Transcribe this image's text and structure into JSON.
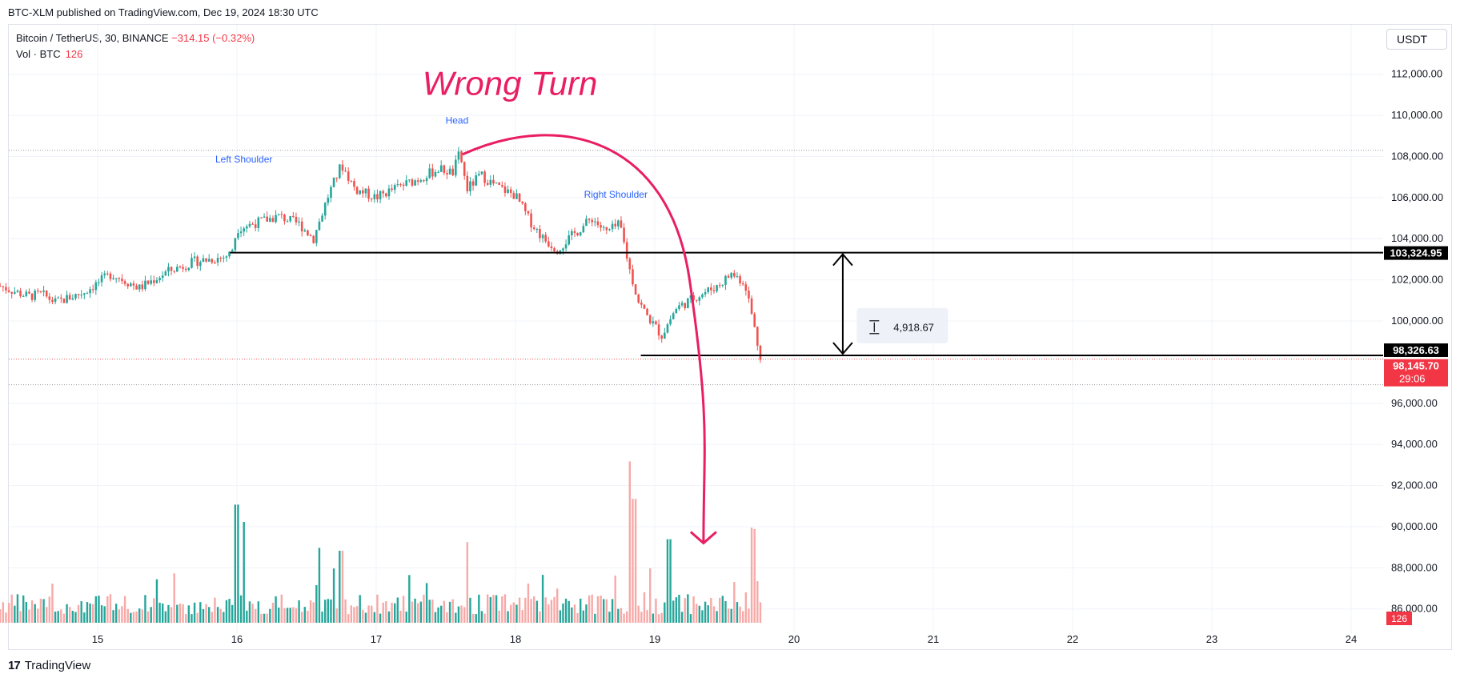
{
  "header": {
    "published": "BTC-XLM published on TradingView.com, Dec 19, 2024 18:30 UTC"
  },
  "legend": {
    "symbol": "Bitcoin / TetherUS, 30, BINANCE",
    "change": "−314.15 (−0.32%)",
    "volume_label": "Vol · BTC",
    "volume_value": "126"
  },
  "currency": "USDT",
  "footer": {
    "brand": "TradingView"
  },
  "colors": {
    "up": "#26a69a",
    "down": "#ef5350",
    "vol_up": "#26a69a",
    "vol_down": "#f7a9a7",
    "annotation": "#e91e63",
    "pattern_label": "#2962ff"
  },
  "annotations": {
    "title": "Wrong Turn",
    "left_shoulder": "Left Shoulder",
    "head": "Head",
    "right_shoulder": "Right Shoulder",
    "measure": "4,918.67"
  },
  "price_tags": {
    "neckline": "103,324.95",
    "target": "98,326.63",
    "last": "98,145.70",
    "countdown": "29:06",
    "volume": "126"
  },
  "chart_data": {
    "type": "candlestick",
    "y_ticks": [
      "112,000.00",
      "110,000.00",
      "108,000.00",
      "106,000.00",
      "104,000.00",
      "102,000.00",
      "100,000.00",
      "96,000.00",
      "94,000.00",
      "92,000.00",
      "90,000.00",
      "88,000.00",
      "86,000.00"
    ],
    "x_ticks": [
      "15",
      "16",
      "17",
      "18",
      "19",
      "20",
      "21",
      "22",
      "23",
      "24"
    ],
    "ylim": [
      84800,
      113200
    ],
    "x_range": [
      "Dec 14",
      "Dec 24"
    ],
    "levels": {
      "neckline": 103324.95,
      "target": 98326.63,
      "last": 98145.7,
      "high_line": 108300,
      "low_line": 96900
    },
    "price_path": [
      [
        14.3,
        101700
      ],
      [
        14.5,
        101200
      ],
      [
        14.6,
        101300
      ],
      [
        14.7,
        100900
      ],
      [
        14.9,
        101400
      ],
      [
        15.1,
        102300
      ],
      [
        15.3,
        101600
      ],
      [
        15.5,
        102400
      ],
      [
        15.7,
        102900
      ],
      [
        15.9,
        103100
      ],
      [
        15.96,
        103300
      ],
      [
        16.0,
        104500
      ],
      [
        16.15,
        104800
      ],
      [
        16.3,
        105100
      ],
      [
        16.45,
        104700
      ],
      [
        16.55,
        104000
      ],
      [
        16.65,
        106000
      ],
      [
        16.75,
        107600
      ],
      [
        16.85,
        106400
      ],
      [
        17.0,
        106000
      ],
      [
        17.15,
        106500
      ],
      [
        17.3,
        106900
      ],
      [
        17.45,
        107400
      ],
      [
        17.55,
        107200
      ],
      [
        17.6,
        108200
      ],
      [
        17.65,
        106400
      ],
      [
        17.75,
        107100
      ],
      [
        17.85,
        106600
      ],
      [
        18.0,
        106100
      ],
      [
        18.1,
        104900
      ],
      [
        18.2,
        104000
      ],
      [
        18.3,
        103500
      ],
      [
        18.45,
        104400
      ],
      [
        18.55,
        105000
      ],
      [
        18.65,
        104300
      ],
      [
        18.75,
        104700
      ],
      [
        18.82,
        102500
      ],
      [
        18.88,
        101000
      ],
      [
        18.95,
        100200
      ],
      [
        19.05,
        99300
      ],
      [
        19.15,
        100600
      ],
      [
        19.3,
        101200
      ],
      [
        19.45,
        101700
      ],
      [
        19.55,
        102300
      ],
      [
        19.6,
        102100
      ],
      [
        19.65,
        101800
      ],
      [
        19.7,
        100200
      ],
      [
        19.73,
        99200
      ],
      [
        19.75,
        98500
      ],
      [
        19.77,
        98145.7
      ]
    ],
    "volume_spikes": [
      [
        16.0,
        4100
      ],
      [
        16.05,
        3500
      ],
      [
        16.6,
        2600
      ],
      [
        16.75,
        2500
      ],
      [
        17.65,
        2800
      ],
      [
        18.82,
        5600
      ],
      [
        18.85,
        4300
      ],
      [
        19.1,
        2900
      ],
      [
        19.65,
        2700
      ],
      [
        19.7,
        3300
      ],
      [
        19.72,
        3250
      ]
    ]
  }
}
